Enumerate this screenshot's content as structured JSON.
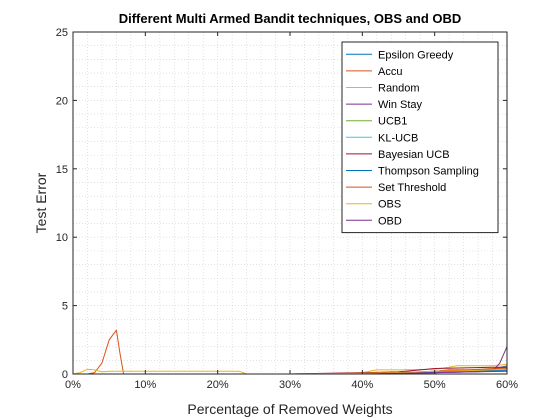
{
  "chart_data": {
    "type": "line",
    "title": "Different Multi Armed Bandit techniques, OBS and OBD",
    "xlabel": "Percentage of Removed Weights",
    "ylabel": "Test Error",
    "xlim": [
      0,
      60
    ],
    "ylim": [
      0,
      25
    ],
    "xticks": [
      0,
      10,
      20,
      30,
      40,
      50,
      60
    ],
    "xtick_labels": [
      "0%",
      "10%",
      "20%",
      "30%",
      "40%",
      "50%",
      "60%"
    ],
    "yticks": [
      0,
      5,
      10,
      15,
      20,
      25
    ],
    "ytick_labels": [
      "0",
      "5",
      "10",
      "15",
      "20",
      "25"
    ],
    "grid": "dotted",
    "legend_position": "top-right",
    "series": [
      {
        "name": "Epsilon Greedy",
        "color": "#0072BD",
        "x": [
          0,
          10,
          20,
          30,
          38,
          42,
          46,
          48,
          50,
          52,
          55,
          58,
          60
        ],
        "y": [
          0,
          0,
          0,
          0,
          0,
          0.05,
          0.1,
          0.15,
          0.2,
          0.3,
          0.3,
          0.35,
          0.6
        ]
      },
      {
        "name": "Accu",
        "color": "#D95319",
        "x": [
          0,
          2,
          3,
          4,
          5,
          6,
          6.5,
          7,
          10,
          20,
          23,
          24,
          30,
          40,
          48,
          50,
          53,
          55,
          58,
          60
        ],
        "y": [
          0,
          0,
          0.1,
          0.8,
          2.5,
          3.2,
          1.5,
          0,
          0,
          0,
          0,
          0,
          0,
          0,
          0.1,
          0.2,
          0.3,
          0.3,
          0.4,
          0.5
        ]
      },
      {
        "name": "Random",
        "color": "#EDB120",
        "x": [
          0,
          1,
          2,
          3,
          4,
          5,
          10,
          15,
          20,
          23,
          24,
          30,
          38,
          40,
          42,
          45,
          50,
          52,
          53,
          55,
          58,
          60
        ],
        "y": [
          0,
          0.1,
          0.35,
          0.3,
          0.15,
          0.2,
          0.2,
          0.2,
          0.2,
          0.2,
          0,
          0,
          0,
          0.1,
          0.3,
          0.3,
          0.35,
          0.5,
          0.6,
          0.6,
          0.6,
          0.7
        ]
      },
      {
        "name": "Win Stay",
        "color": "#7E2F8E",
        "x": [
          0,
          30,
          40,
          45,
          50,
          55,
          58,
          59,
          60
        ],
        "y": [
          0,
          0,
          0,
          0.05,
          0.1,
          0.15,
          0.2,
          0.8,
          2.0
        ]
      },
      {
        "name": "UCB1",
        "color": "#77AC30",
        "x": [
          0,
          30,
          40,
          45,
          50,
          55,
          60
        ],
        "y": [
          0,
          0,
          0,
          0.05,
          0.1,
          0.2,
          0.3
        ]
      },
      {
        "name": "KL-UCB",
        "color": "#4DBEEE",
        "x": [
          0,
          30,
          40,
          45,
          50,
          55,
          60
        ],
        "y": [
          0,
          0,
          0,
          0.05,
          0.1,
          0.15,
          0.25
        ]
      },
      {
        "name": "Bayesian UCB",
        "color": "#A2142F",
        "x": [
          0,
          30,
          40,
          45,
          48,
          50,
          55,
          58,
          60
        ],
        "y": [
          0,
          0,
          0.1,
          0.15,
          0.3,
          0.4,
          0.45,
          0.5,
          0.5
        ]
      },
      {
        "name": "Thompson Sampling",
        "color": "#0072BD",
        "x": [
          0,
          30,
          40,
          45,
          50,
          55,
          60
        ],
        "y": [
          0,
          0,
          0,
          0.1,
          0.15,
          0.2,
          0.3
        ]
      },
      {
        "name": "Set Threshold",
        "color": "#D95319",
        "x": [
          0,
          30,
          40,
          45,
          50,
          55,
          60
        ],
        "y": [
          0,
          0,
          0.05,
          0.1,
          0.2,
          0.3,
          0.4
        ]
      },
      {
        "name": "OBS",
        "color": "#EDB120",
        "x": [
          0,
          30,
          40,
          45,
          50,
          55,
          60
        ],
        "y": [
          0,
          0,
          0.05,
          0.1,
          0.2,
          0.25,
          0.35
        ]
      },
      {
        "name": "OBD",
        "color": "#7E2F8E",
        "x": [
          0,
          30,
          40,
          45,
          50,
          55,
          60
        ],
        "y": [
          0,
          0,
          0,
          0.05,
          0.1,
          0.15,
          0.2
        ]
      }
    ]
  }
}
